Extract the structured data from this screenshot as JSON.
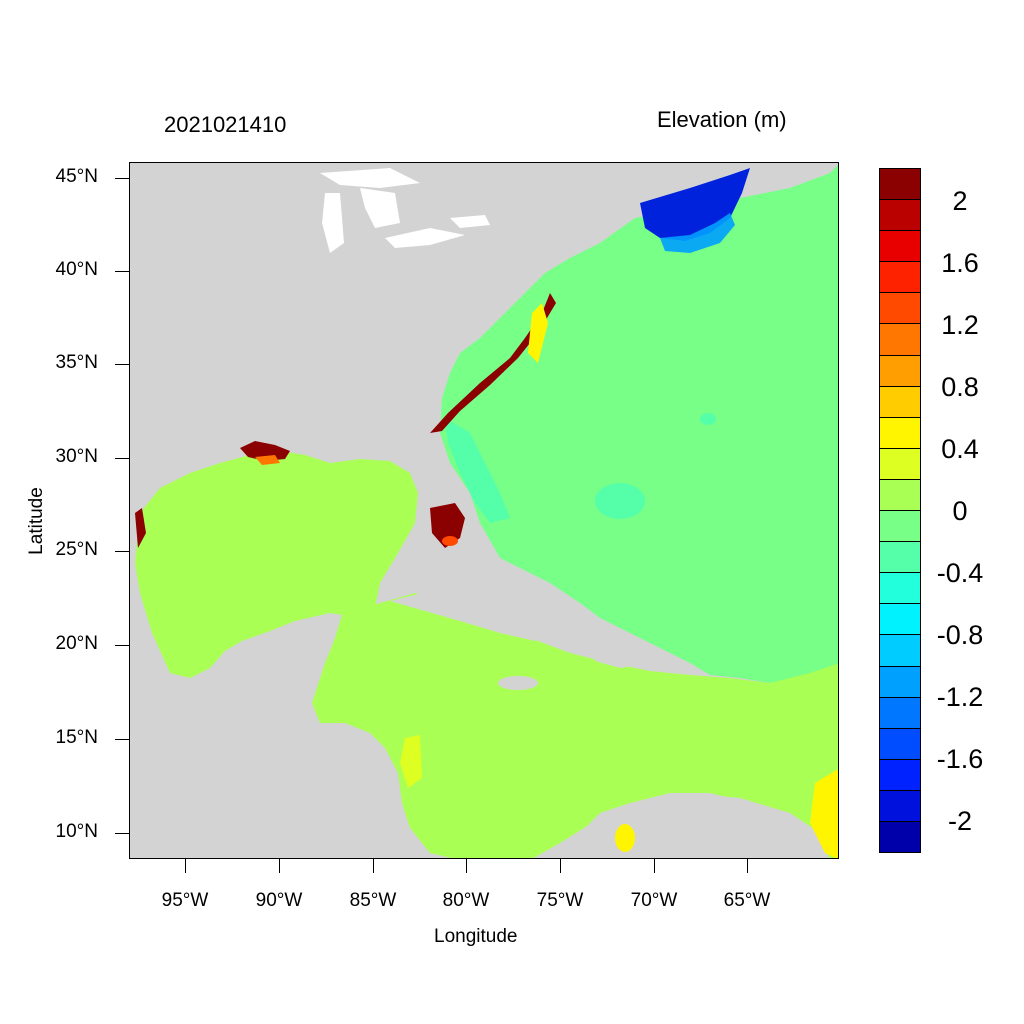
{
  "map": {
    "title": "2021021410",
    "variable": "Elevation (m)",
    "xlabel": "Longitude",
    "ylabel": "Latitude",
    "lon_range": [
      -98,
      -60.3
    ],
    "lat_range": [
      8.5,
      45.8
    ],
    "x_ticks": [
      "95°W",
      "90°W",
      "85°W",
      "80°W",
      "75°W",
      "70°W",
      "65°W"
    ],
    "x_tick_values": [
      -95,
      -90,
      -85,
      -80,
      -75,
      -70,
      -65
    ],
    "y_ticks": [
      "45°N",
      "40°N",
      "35°N",
      "30°N",
      "25°N",
      "20°N",
      "15°N",
      "10°N"
    ],
    "y_tick_values": [
      45,
      40,
      35,
      30,
      25,
      20,
      15,
      10
    ],
    "land_color": "#d3d3d3",
    "regions": [
      {
        "name": "gulf-of-mexico",
        "level": 0.1,
        "color": "#aaff55"
      },
      {
        "name": "caribbean-sea",
        "level": 0.1,
        "color": "#aaff55"
      },
      {
        "name": "atlantic-ocean",
        "level": -0.1,
        "color": "#77ff88"
      },
      {
        "name": "gulf-of-maine",
        "level": -2.0,
        "color": "#0022dd"
      },
      {
        "name": "south-florida",
        "level": 2.2,
        "color": "#8b0000"
      }
    ]
  },
  "colorbar": {
    "labels": [
      "2",
      "1.6",
      "1.2",
      "0.8",
      "0.4",
      "0",
      "-0.4",
      "-0.8",
      "-1.2",
      "-1.6",
      "-2"
    ],
    "colors": [
      "#8b0000",
      "#bb0000",
      "#e80000",
      "#ff2200",
      "#ff4a00",
      "#ff7700",
      "#ff9e00",
      "#ffcc00",
      "#fff500",
      "#ddff22",
      "#aaff55",
      "#77ff88",
      "#55ffaa",
      "#22ffdd",
      "#00f2ff",
      "#00ccff",
      "#00a0ff",
      "#0077ff",
      "#004cff",
      "#0022ff",
      "#0011dd",
      "#0000aa"
    ]
  }
}
